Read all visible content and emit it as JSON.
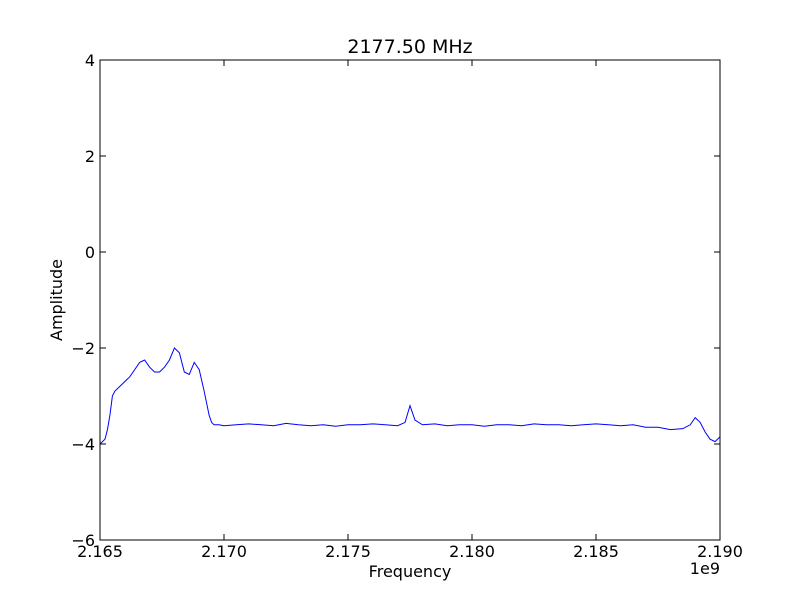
{
  "chart_data": {
    "type": "line",
    "title": "2177.50 MHz",
    "xlabel": "Frequency",
    "ylabel": "Amplitude",
    "x_offset_label": "1e9",
    "xlim": [
      2.165,
      2.19
    ],
    "ylim": [
      -6,
      4
    ],
    "x_ticks": [
      2.165,
      2.17,
      2.175,
      2.18,
      2.185,
      2.19
    ],
    "x_tick_labels": [
      "2.165",
      "2.170",
      "2.175",
      "2.180",
      "2.185",
      "2.190"
    ],
    "y_ticks": [
      -6,
      -4,
      -2,
      0,
      2,
      4
    ],
    "y_tick_labels": [
      "−6",
      "−4",
      "−2",
      "0",
      "2",
      "4"
    ],
    "grid": false,
    "line_color": "#0000ff",
    "series": [
      {
        "x": [
          2.165,
          2.1652,
          2.1653,
          2.1654,
          2.1655,
          2.1656,
          2.1658,
          2.166,
          2.1662,
          2.1664,
          2.1666,
          2.1668,
          2.167,
          2.1672,
          2.1674,
          2.1676,
          2.1678,
          2.168,
          2.1682,
          2.1684,
          2.1686,
          2.1688,
          2.169,
          2.1692,
          2.1694,
          2.1695,
          2.1696,
          2.1698,
          2.17,
          2.1705,
          2.171,
          2.1715,
          2.172,
          2.1725,
          2.173,
          2.1735,
          2.174,
          2.1745,
          2.175,
          2.1755,
          2.176,
          2.1765,
          2.177,
          2.1773,
          2.1775,
          2.1777,
          2.178,
          2.1785,
          2.179,
          2.1795,
          2.18,
          2.1805,
          2.181,
          2.1815,
          2.182,
          2.1825,
          2.183,
          2.1835,
          2.184,
          2.1845,
          2.185,
          2.1855,
          2.186,
          2.1865,
          2.187,
          2.1875,
          2.188,
          2.1885,
          2.1888,
          2.189,
          2.1892,
          2.1894,
          2.1896,
          2.1898,
          2.19
        ],
        "y": [
          -4.0,
          -3.9,
          -3.7,
          -3.4,
          -3.0,
          -2.9,
          -2.8,
          -2.7,
          -2.6,
          -2.45,
          -2.3,
          -2.25,
          -2.4,
          -2.5,
          -2.5,
          -2.4,
          -2.25,
          -2.0,
          -2.1,
          -2.5,
          -2.55,
          -2.3,
          -2.45,
          -2.9,
          -3.4,
          -3.55,
          -3.6,
          -3.6,
          -3.62,
          -3.6,
          -3.58,
          -3.6,
          -3.62,
          -3.57,
          -3.6,
          -3.62,
          -3.6,
          -3.63,
          -3.6,
          -3.6,
          -3.58,
          -3.6,
          -3.62,
          -3.55,
          -3.2,
          -3.5,
          -3.6,
          -3.58,
          -3.62,
          -3.6,
          -3.6,
          -3.63,
          -3.6,
          -3.6,
          -3.62,
          -3.58,
          -3.6,
          -3.6,
          -3.62,
          -3.6,
          -3.58,
          -3.6,
          -3.62,
          -3.6,
          -3.65,
          -3.65,
          -3.7,
          -3.68,
          -3.6,
          -3.45,
          -3.55,
          -3.75,
          -3.9,
          -3.95,
          -3.85
        ]
      }
    ]
  }
}
